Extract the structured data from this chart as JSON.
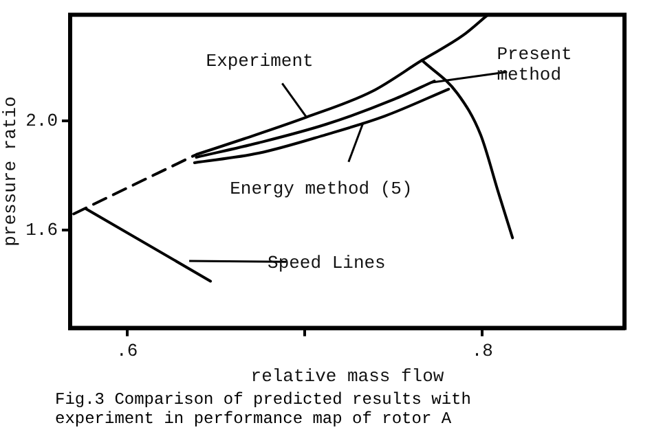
{
  "chart_data": {
    "type": "line",
    "xlabel": "relative mass flow",
    "ylabel": "pressure ratio",
    "xlim": [
      0.568,
      0.88
    ],
    "ylim": [
      1.24,
      2.39
    ],
    "xticks": [
      {
        "value": 0.6,
        "label": ".6"
      },
      {
        "value": 0.7,
        "label": null
      },
      {
        "value": 0.8,
        "label": ".8"
      }
    ],
    "yticks": [
      {
        "value": 1.6,
        "label": "1.6"
      },
      {
        "value": 2.0,
        "label": "2.0"
      }
    ],
    "series": [
      {
        "color": "#000000",
        "x": [
          0.639,
          0.666,
          0.701,
          0.738,
          0.766,
          0.789,
          0.803
        ],
        "values": [
          1.877,
          1.935,
          2.014,
          2.109,
          2.223,
          2.314,
          2.39
        ]
      },
      {
        "color": "#000000",
        "x": [
          0.639,
          0.674,
          0.712,
          0.75,
          0.773
        ],
        "values": [
          1.867,
          1.92,
          1.988,
          2.079,
          2.147
        ]
      },
      {
        "color": "#000000",
        "x": [
          0.638,
          0.674,
          0.712,
          0.745,
          0.781
        ],
        "values": [
          1.847,
          1.882,
          1.95,
          2.018,
          2.117
        ]
      },
      {
        "color": "#000000",
        "line_style": "dashed",
        "x": [
          0.57,
          0.638
        ],
        "values": [
          1.659,
          1.874
        ]
      },
      {
        "color": "#000000",
        "x": [
          0.766,
          0.786,
          0.799,
          0.809,
          0.817
        ],
        "values": [
          2.223,
          2.101,
          1.95,
          1.738,
          1.571
        ]
      },
      {
        "color": "#000000",
        "x": [
          0.577,
          0.647
        ],
        "values": [
          1.677,
          1.412
        ]
      }
    ],
    "annotations": [
      {
        "text": "Experiment",
        "x": 0.701,
        "y": 2.014
      },
      {
        "text": "Present method",
        "x": 0.771,
        "y": 2.141
      },
      {
        "text": "Energy method (5)",
        "x": 0.733,
        "y": 1.995
      },
      {
        "text": "Speed Lines",
        "x": 0.635,
        "y": 1.486
      },
      "Fig.3 Comparison of predicted results with experiment in performance map of rotor A"
    ],
    "grid": false,
    "legend": false,
    "marker": "none"
  }
}
